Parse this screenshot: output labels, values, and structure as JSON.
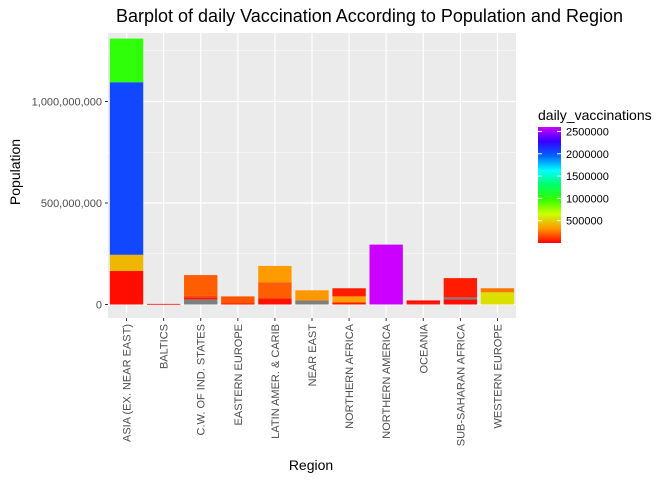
{
  "chart_data": {
    "type": "bar",
    "stacked": true,
    "title": "Barplot of daily Vaccination According to Population and Region",
    "xlabel": "Region",
    "ylabel": "Population",
    "ylim": [
      0,
      1350000000
    ],
    "yticks": [
      0,
      500000000,
      1000000000
    ],
    "ytick_labels": [
      "0",
      "500,000,000",
      "1,000,000,000"
    ],
    "grid": true,
    "categories": [
      "ASIA (EX. NEAR EAST)",
      "BALTICS",
      "C.W. OF IND. STATES",
      "EASTERN EUROPE",
      "LATIN AMER. & CARIB",
      "NEAR EAST",
      "NORTHERN AFRICA",
      "NORTHERN AMERICA",
      "OCEANIA",
      "SUB-SAHARAN AFRICA",
      "WESTERN EUROPE"
    ],
    "stacks": [
      [
        {
          "population": 165000000,
          "daily_vaccinations": 30000
        },
        {
          "population": 80000000,
          "daily_vaccinations": 420000
        },
        {
          "population": 850000000,
          "daily_vaccinations": 2050000
        },
        {
          "population": 215000000,
          "daily_vaccinations": 1000000
        }
      ],
      [
        {
          "population": 3000000,
          "daily_vaccinations": 5000
        }
      ],
      [
        {
          "population": 25000000,
          "daily_vaccinations": 0
        },
        {
          "population": 10000000,
          "daily_vaccinations": 50000
        },
        {
          "population": 10000000,
          "daily_vaccinations": 150000
        },
        {
          "population": 100000000,
          "daily_vaccinations": 200000
        }
      ],
      [
        {
          "population": 5000000,
          "daily_vaccinations": 30000
        },
        {
          "population": 35000000,
          "daily_vaccinations": 180000
        }
      ],
      [
        {
          "population": 30000000,
          "daily_vaccinations": 40000
        },
        {
          "population": 80000000,
          "daily_vaccinations": 200000
        },
        {
          "population": 80000000,
          "daily_vaccinations": 330000
        }
      ],
      [
        {
          "population": 20000000,
          "daily_vaccinations": 0
        },
        {
          "population": 50000000,
          "daily_vaccinations": 320000
        }
      ],
      [
        {
          "population": 10000000,
          "daily_vaccinations": 50000
        },
        {
          "population": 30000000,
          "daily_vaccinations": 350000
        },
        {
          "population": 40000000,
          "daily_vaccinations": 60000
        }
      ],
      [
        {
          "population": 295000000,
          "daily_vaccinations": 2600000
        }
      ],
      [
        {
          "population": 10000000,
          "daily_vaccinations": 50000
        },
        {
          "population": 10000000,
          "daily_vaccinations": 20000
        }
      ],
      [
        {
          "population": 25000000,
          "daily_vaccinations": 30000
        },
        {
          "population": 10000000,
          "daily_vaccinations": 0
        },
        {
          "population": 95000000,
          "daily_vaccinations": 60000
        }
      ],
      [
        {
          "population": 60000000,
          "daily_vaccinations": 550000
        },
        {
          "population": 20000000,
          "daily_vaccinations": 250000
        }
      ]
    ],
    "legend": {
      "title": "daily_vaccinations",
      "position": "right",
      "min": 0,
      "max": 2600000,
      "breaks": [
        500000,
        1000000,
        1500000,
        2000000,
        2500000
      ],
      "break_labels": [
        "500000",
        "1000000",
        "1500000",
        "2000000",
        "2500000"
      ],
      "palette": [
        "#ff0000",
        "#ff9900",
        "#ccff00",
        "#33ff00",
        "#00ff66",
        "#00ffff",
        "#0066ff",
        "#3300ff",
        "#cc00ff"
      ]
    },
    "na_color": "#7f7f7f",
    "panel_background": "#ebebeb",
    "grid_color": "#ffffff"
  }
}
